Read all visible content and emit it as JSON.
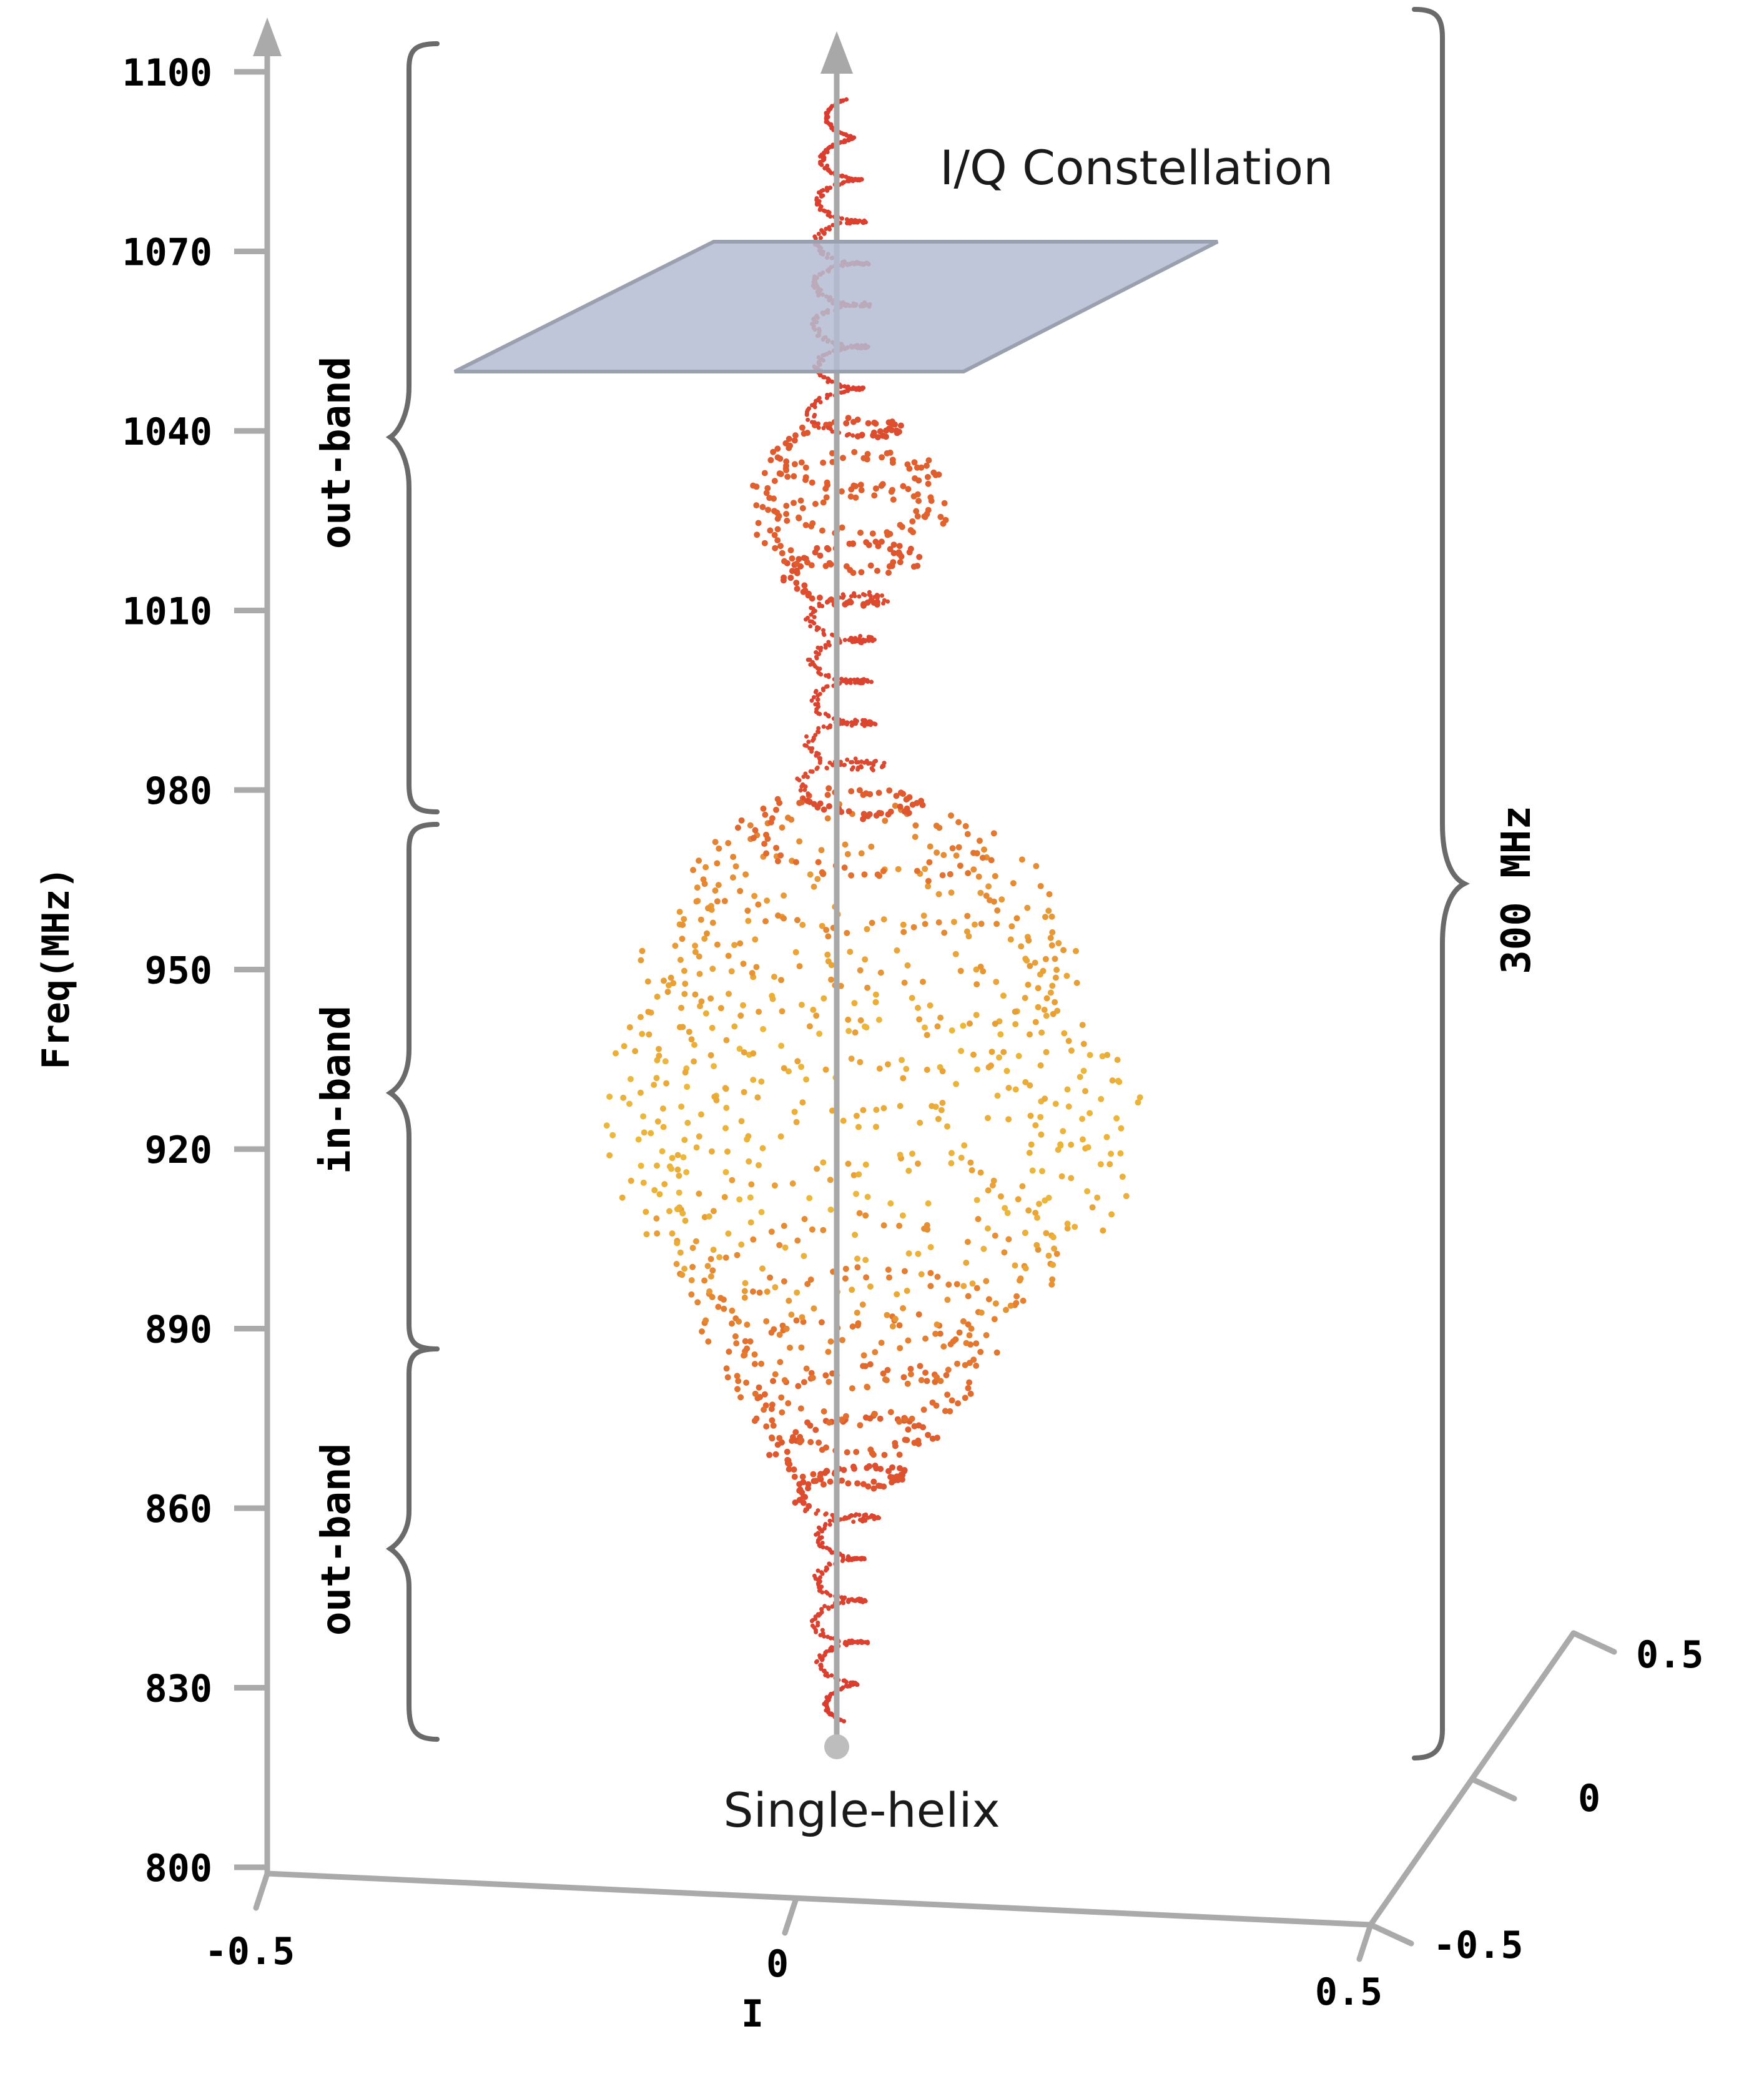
{
  "chart_data": {
    "type": "scatter",
    "subtype": "3d-helix",
    "title": "",
    "zlabel": "Freq(MHz)",
    "xlabel": "I",
    "ylabel": "",
    "zlim": [
      800,
      1100
    ],
    "xlim": [
      -0.5,
      0.5
    ],
    "ylim": [
      -0.5,
      0.5
    ],
    "z_ticks": [
      "1100",
      "1070",
      "1040",
      "1010",
      "980",
      "950",
      "920",
      "890",
      "860",
      "830",
      "800"
    ],
    "x_ticks": [
      "-0.5",
      "0",
      "0.5"
    ],
    "y_ticks": [
      "0.5",
      "0",
      "-0.5"
    ],
    "annotations": {
      "plane_label": "I/Q Constellation",
      "origin_label": "Single-helix",
      "span_label": "300 MHz",
      "band_top": "out-band",
      "band_mid": "in-band",
      "band_bottom": "out-band"
    },
    "bands": [
      {
        "name": "out-band",
        "range_mhz": [
          975,
          1100
        ]
      },
      {
        "name": "in-band",
        "range_mhz": [
          890,
          975
        ]
      },
      {
        "name": "out-band",
        "range_mhz": [
          825,
          890
        ]
      }
    ],
    "helix_envelope": [
      {
        "freq": 825,
        "amplitude": 0.02
      },
      {
        "freq": 840,
        "amplitude": 0.05
      },
      {
        "freq": 855,
        "amplitude": 0.04
      },
      {
        "freq": 868,
        "amplitude": 0.12
      },
      {
        "freq": 882,
        "amplitude": 0.22
      },
      {
        "freq": 895,
        "amplitude": 0.28
      },
      {
        "freq": 910,
        "amplitude": 0.42
      },
      {
        "freq": 925,
        "amplitude": 0.46
      },
      {
        "freq": 940,
        "amplitude": 0.4
      },
      {
        "freq": 955,
        "amplitude": 0.36
      },
      {
        "freq": 968,
        "amplitude": 0.28
      },
      {
        "freq": 980,
        "amplitude": 0.08
      },
      {
        "freq": 995,
        "amplitude": 0.05
      },
      {
        "freq": 1010,
        "amplitude": 0.06
      },
      {
        "freq": 1025,
        "amplitude": 0.17
      },
      {
        "freq": 1035,
        "amplitude": 0.15
      },
      {
        "freq": 1045,
        "amplitude": 0.04
      },
      {
        "freq": 1060,
        "amplitude": 0.05
      },
      {
        "freq": 1080,
        "amplitude": 0.04
      },
      {
        "freq": 1095,
        "amplitude": 0.02
      }
    ],
    "colors": {
      "axis": "#aaaaaa",
      "bracket": "#6a6a6a",
      "plane_fill": "#b4bcd2",
      "plane_stroke": "#9aa0ae",
      "helix_low": "#d9352f",
      "helix_mid": "#e2732e",
      "helix_high": "#ecb83a"
    }
  }
}
